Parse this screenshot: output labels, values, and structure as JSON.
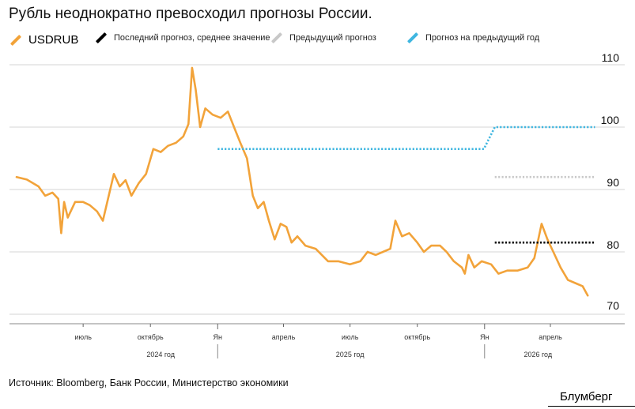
{
  "header": {
    "title": "Рубль неоднократно превосходил прогнозы России."
  },
  "legend": [
    {
      "label": "USDRUB",
      "color": "#f2a33a"
    },
    {
      "label": "Последний прогноз, среднее значение",
      "color": "#000000"
    },
    {
      "label": "Предыдущий прогноз",
      "color": "#c8c8c8"
    },
    {
      "label": "Прогноз на предыдущий год",
      "color": "#3fb6e0"
    }
  ],
  "footer": {
    "source": "Источник: Bloomberg, Банк России, Министерство экономики",
    "brand": "Блумберг"
  },
  "chart_data": {
    "type": "line",
    "title": "Рубль неоднократно превосходил прогнозы России.",
    "ylim": [
      70,
      110
    ],
    "yticks": [
      70,
      80,
      90,
      100,
      110
    ],
    "grid": true,
    "legend_position": "top",
    "x_month_ticks": [
      {
        "label": "июль",
        "date": "2024-07-01"
      },
      {
        "label": "октябрь",
        "date": "2024-10-01"
      },
      {
        "label": "Ян",
        "date": "2025-01-01"
      },
      {
        "label": "апрель",
        "date": "2025-04-01"
      },
      {
        "label": "июль",
        "date": "2025-07-01"
      },
      {
        "label": "октябрь",
        "date": "2025-10-01"
      },
      {
        "label": "Ян",
        "date": "2026-01-01"
      },
      {
        "label": "апрель",
        "date": "2026-04-01"
      }
    ],
    "x_year_labels": [
      {
        "label": "2024 год",
        "date": "2024-10-15"
      },
      {
        "label": "2025 год",
        "date": "2025-07-01"
      },
      {
        "label": "2026 год",
        "date": "2026-03-15"
      }
    ],
    "series": [
      {
        "name": "USDRUB",
        "color": "#f2a33a",
        "style": "solid",
        "points": [
          [
            "2024-04-01",
            92.0
          ],
          [
            "2024-04-15",
            91.6
          ],
          [
            "2024-05-01",
            90.5
          ],
          [
            "2024-05-10",
            89.0
          ],
          [
            "2024-05-20",
            89.5
          ],
          [
            "2024-05-28",
            88.5
          ],
          [
            "2024-06-01",
            83.0
          ],
          [
            "2024-06-05",
            88.0
          ],
          [
            "2024-06-10",
            85.5
          ],
          [
            "2024-06-20",
            88.0
          ],
          [
            "2024-07-01",
            88.0
          ],
          [
            "2024-07-10",
            87.5
          ],
          [
            "2024-07-20",
            86.5
          ],
          [
            "2024-07-28",
            85.0
          ],
          [
            "2024-08-05",
            89.0
          ],
          [
            "2024-08-12",
            92.5
          ],
          [
            "2024-08-20",
            90.5
          ],
          [
            "2024-08-28",
            91.5
          ],
          [
            "2024-09-05",
            89.0
          ],
          [
            "2024-09-15",
            91.0
          ],
          [
            "2024-09-25",
            92.5
          ],
          [
            "2024-10-05",
            96.5
          ],
          [
            "2024-10-15",
            96.0
          ],
          [
            "2024-10-25",
            97.0
          ],
          [
            "2024-11-05",
            97.5
          ],
          [
            "2024-11-15",
            98.5
          ],
          [
            "2024-11-22",
            100.5
          ],
          [
            "2024-11-27",
            109.5
          ],
          [
            "2024-12-02",
            106.0
          ],
          [
            "2024-12-08",
            100.0
          ],
          [
            "2024-12-15",
            103.0
          ],
          [
            "2024-12-25",
            102.0
          ],
          [
            "2025-01-05",
            101.5
          ],
          [
            "2025-01-15",
            102.5
          ],
          [
            "2025-01-25",
            99.5
          ],
          [
            "2025-02-01",
            97.5
          ],
          [
            "2025-02-10",
            95.0
          ],
          [
            "2025-02-18",
            89.0
          ],
          [
            "2025-02-25",
            87.0
          ],
          [
            "2025-03-05",
            88.0
          ],
          [
            "2025-03-12",
            85.0
          ],
          [
            "2025-03-20",
            82.0
          ],
          [
            "2025-03-28",
            84.5
          ],
          [
            "2025-04-05",
            84.0
          ],
          [
            "2025-04-12",
            81.5
          ],
          [
            "2025-04-20",
            82.5
          ],
          [
            "2025-05-01",
            81.0
          ],
          [
            "2025-05-15",
            80.5
          ],
          [
            "2025-06-01",
            78.5
          ],
          [
            "2025-06-15",
            78.5
          ],
          [
            "2025-07-01",
            78.0
          ],
          [
            "2025-07-15",
            78.5
          ],
          [
            "2025-07-25",
            80.0
          ],
          [
            "2025-08-05",
            79.5
          ],
          [
            "2025-08-15",
            80.0
          ],
          [
            "2025-08-25",
            80.5
          ],
          [
            "2025-09-01",
            85.0
          ],
          [
            "2025-09-10",
            82.5
          ],
          [
            "2025-09-20",
            83.0
          ],
          [
            "2025-10-01",
            81.5
          ],
          [
            "2025-10-10",
            80.0
          ],
          [
            "2025-10-20",
            81.0
          ],
          [
            "2025-11-01",
            81.0
          ],
          [
            "2025-11-10",
            80.0
          ],
          [
            "2025-11-20",
            78.5
          ],
          [
            "2025-12-01",
            77.5
          ],
          [
            "2025-12-05",
            76.5
          ],
          [
            "2025-12-10",
            79.5
          ],
          [
            "2025-12-18",
            77.5
          ],
          [
            "2025-12-28",
            78.5
          ],
          [
            "2026-01-10",
            78.0
          ],
          [
            "2026-01-20",
            76.5
          ],
          [
            "2026-02-01",
            77.0
          ],
          [
            "2026-02-15",
            77.0
          ],
          [
            "2026-03-01",
            77.5
          ],
          [
            "2026-03-10",
            79.0
          ],
          [
            "2026-03-20",
            84.5
          ],
          [
            "2026-03-28",
            82.0
          ],
          [
            "2026-04-05",
            80.0
          ],
          [
            "2026-04-15",
            77.5
          ],
          [
            "2026-04-25",
            75.5
          ],
          [
            "2026-05-05",
            75.0
          ],
          [
            "2026-05-15",
            74.5
          ],
          [
            "2026-05-22",
            73.0
          ]
        ]
      },
      {
        "name": "Последний прогноз, среднее значение",
        "color": "#000000",
        "style": "dotted",
        "points": [
          [
            "2026-01-15",
            81.5
          ],
          [
            "2026-06-01",
            81.5
          ]
        ]
      },
      {
        "name": "Предыдущий прогноз",
        "color": "#c8c8c8",
        "style": "dotted",
        "points": [
          [
            "2026-01-15",
            92.0
          ],
          [
            "2026-06-01",
            92.0
          ]
        ]
      },
      {
        "name": "Прогноз на предыдущий год",
        "color": "#3fb6e0",
        "style": "dotted",
        "points": [
          [
            "2025-01-01",
            96.5
          ],
          [
            "2025-12-31",
            96.5
          ],
          [
            "2026-01-15",
            100.0
          ],
          [
            "2026-06-01",
            100.0
          ]
        ]
      }
    ]
  }
}
